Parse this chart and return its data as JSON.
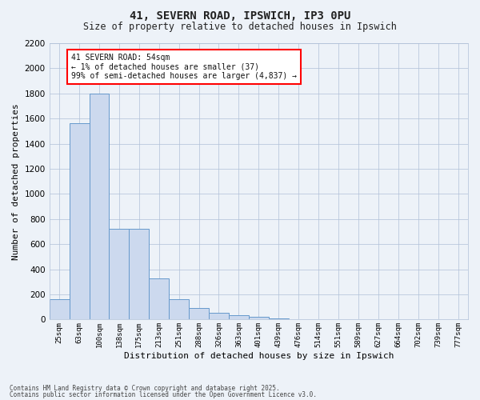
{
  "title1": "41, SEVERN ROAD, IPSWICH, IP3 0PU",
  "title2": "Size of property relative to detached houses in Ipswich",
  "xlabel": "Distribution of detached houses by size in Ipswich",
  "ylabel": "Number of detached properties",
  "bar_color": "#ccd9ee",
  "bar_edge_color": "#6699cc",
  "categories": [
    "25sqm",
    "63sqm",
    "100sqm",
    "138sqm",
    "175sqm",
    "213sqm",
    "251sqm",
    "288sqm",
    "326sqm",
    "363sqm",
    "401sqm",
    "439sqm",
    "476sqm",
    "514sqm",
    "551sqm",
    "589sqm",
    "627sqm",
    "664sqm",
    "702sqm",
    "739sqm",
    "777sqm"
  ],
  "values": [
    160,
    1560,
    1800,
    720,
    720,
    330,
    160,
    90,
    55,
    35,
    20,
    10,
    5,
    2,
    1,
    0,
    0,
    0,
    0,
    0,
    0
  ],
  "ylim": [
    0,
    2200
  ],
  "yticks": [
    0,
    200,
    400,
    600,
    800,
    1000,
    1200,
    1400,
    1600,
    1800,
    2000,
    2200
  ],
  "annotation_title": "41 SEVERN ROAD: 54sqm",
  "annotation_line2": "← 1% of detached houses are smaller (37)",
  "annotation_line3": "99% of semi-detached houses are larger (4,837) →",
  "bg_color": "#edf2f8",
  "footer1": "Contains HM Land Registry data © Crown copyright and database right 2025.",
  "footer2": "Contains public sector information licensed under the Open Government Licence v3.0."
}
